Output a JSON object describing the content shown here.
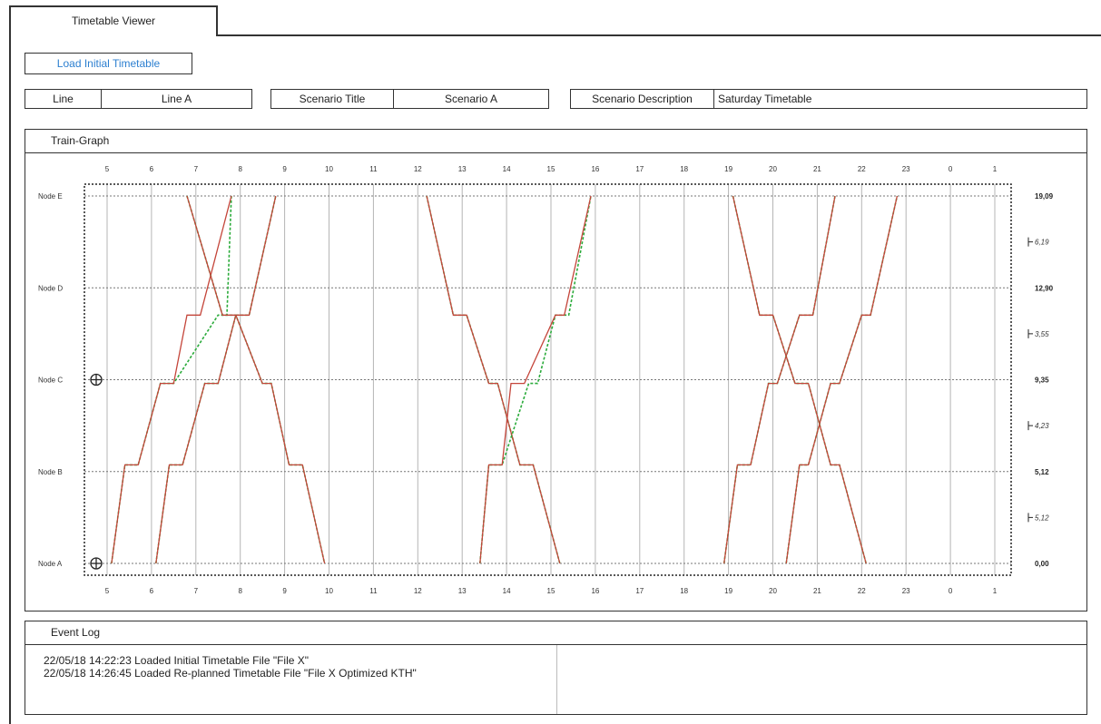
{
  "window": {
    "tab_label": "Timetable Viewer"
  },
  "toolbar": {
    "load_button_label": "Load Initial Timetable"
  },
  "fields": {
    "line": {
      "label": "Line",
      "value": "Line A"
    },
    "scenario_title": {
      "label": "Scenario Title",
      "value": "Scenario A"
    },
    "scenario_description": {
      "label": "Scenario Description",
      "value": "Saturday Timetable"
    }
  },
  "train_graph": {
    "title": "Train-Graph"
  },
  "event_log": {
    "title": "Event Log",
    "entries": [
      "22/05/18 14:22:23 Loaded Initial Timetable File \"File X\"",
      "22/05/18 14:26:45 Loaded Re-planned Timetable File \"File X Optimized KTH\""
    ]
  },
  "chart_data": {
    "type": "line",
    "x_tick_labels": [
      "5",
      "6",
      "7",
      "8",
      "9",
      "10",
      "11",
      "12",
      "13",
      "14",
      "15",
      "16",
      "17",
      "18",
      "19",
      "20",
      "21",
      "22",
      "23",
      "0",
      "1"
    ],
    "xlim": [
      5,
      25
    ],
    "nodes": [
      {
        "name": "Node A",
        "position": "0,00"
      },
      {
        "name": "Node B",
        "position": "5,12"
      },
      {
        "name": "Node C",
        "position": "9,35"
      },
      {
        "name": "Node D",
        "position": "12,90"
      },
      {
        "name": "Node E",
        "position": "19,09"
      }
    ],
    "node_km": [
      0,
      5.12,
      9.35,
      12.9,
      19.09
    ],
    "segment_lengths": [
      "5,12",
      "4,23",
      "3,55",
      "6,19"
    ],
    "expandable_nodes": [
      "Node A",
      "Node C"
    ],
    "grid": true,
    "colors": {
      "initial": "#2bab3b",
      "replanned": "#c4453a"
    },
    "series": [
      {
        "timetable": "initial",
        "points": [
          [
            5.1,
            0
          ],
          [
            5.4,
            5.12
          ],
          [
            5.7,
            5.12
          ],
          [
            6.2,
            9.35
          ],
          [
            6.5,
            9.35
          ],
          [
            7.5,
            12.9
          ],
          [
            7.7,
            12.9
          ],
          [
            7.8,
            19.09
          ]
        ]
      },
      {
        "timetable": "replanned",
        "points": [
          [
            5.1,
            0
          ],
          [
            5.4,
            5.12
          ],
          [
            5.7,
            5.12
          ],
          [
            6.2,
            9.35
          ],
          [
            6.5,
            9.35
          ],
          [
            6.8,
            12.9
          ],
          [
            7.1,
            12.9
          ],
          [
            7.8,
            19.09
          ]
        ]
      },
      {
        "timetable": "initial",
        "points": [
          [
            6.1,
            0
          ],
          [
            6.4,
            5.12
          ],
          [
            6.7,
            5.12
          ],
          [
            7.2,
            9.35
          ],
          [
            7.5,
            9.35
          ],
          [
            7.9,
            12.9
          ],
          [
            8.2,
            12.9
          ],
          [
            8.8,
            19.09
          ]
        ]
      },
      {
        "timetable": "replanned",
        "points": [
          [
            6.1,
            0
          ],
          [
            6.4,
            5.12
          ],
          [
            6.7,
            5.12
          ],
          [
            7.2,
            9.35
          ],
          [
            7.5,
            9.35
          ],
          [
            7.9,
            12.9
          ],
          [
            8.2,
            12.9
          ],
          [
            8.8,
            19.09
          ]
        ]
      },
      {
        "timetable": "initial",
        "points": [
          [
            6.8,
            19.09
          ],
          [
            7.6,
            12.9
          ],
          [
            7.9,
            12.9
          ],
          [
            8.5,
            9.35
          ],
          [
            8.7,
            9.35
          ],
          [
            9.1,
            5.12
          ],
          [
            9.4,
            5.12
          ],
          [
            9.9,
            0
          ]
        ]
      },
      {
        "timetable": "replanned",
        "points": [
          [
            6.8,
            19.09
          ],
          [
            7.6,
            12.9
          ],
          [
            7.9,
            12.9
          ],
          [
            8.5,
            9.35
          ],
          [
            8.7,
            9.35
          ],
          [
            9.1,
            5.12
          ],
          [
            9.4,
            5.12
          ],
          [
            9.9,
            0
          ]
        ]
      },
      {
        "timetable": "initial",
        "points": [
          [
            12.2,
            19.09
          ],
          [
            12.8,
            12.9
          ],
          [
            13.1,
            12.9
          ],
          [
            13.6,
            9.35
          ],
          [
            13.8,
            9.35
          ],
          [
            14.3,
            5.12
          ],
          [
            14.6,
            5.12
          ],
          [
            15.2,
            0
          ]
        ]
      },
      {
        "timetable": "replanned",
        "points": [
          [
            12.2,
            19.09
          ],
          [
            12.8,
            12.9
          ],
          [
            13.1,
            12.9
          ],
          [
            13.6,
            9.35
          ],
          [
            13.8,
            9.35
          ],
          [
            14.3,
            5.12
          ],
          [
            14.6,
            5.12
          ],
          [
            15.2,
            0
          ]
        ]
      },
      {
        "timetable": "initial",
        "points": [
          [
            13.4,
            0
          ],
          [
            13.6,
            5.12
          ],
          [
            13.9,
            5.12
          ],
          [
            14.5,
            9.35
          ],
          [
            14.7,
            9.35
          ],
          [
            15.1,
            12.9
          ],
          [
            15.4,
            12.9
          ],
          [
            15.9,
            19.09
          ]
        ]
      },
      {
        "timetable": "replanned",
        "points": [
          [
            13.4,
            0
          ],
          [
            13.6,
            5.12
          ],
          [
            13.9,
            5.12
          ],
          [
            14.1,
            9.35
          ],
          [
            14.4,
            9.35
          ],
          [
            15.1,
            12.9
          ],
          [
            15.3,
            12.9
          ],
          [
            15.9,
            19.09
          ]
        ]
      },
      {
        "timetable": "initial",
        "points": [
          [
            18.9,
            0
          ],
          [
            19.2,
            5.12
          ],
          [
            19.5,
            5.12
          ],
          [
            19.9,
            9.35
          ],
          [
            20.1,
            9.35
          ],
          [
            20.6,
            12.9
          ],
          [
            20.9,
            12.9
          ],
          [
            21.4,
            19.09
          ]
        ]
      },
      {
        "timetable": "replanned",
        "points": [
          [
            18.9,
            0
          ],
          [
            19.2,
            5.12
          ],
          [
            19.5,
            5.12
          ],
          [
            19.9,
            9.35
          ],
          [
            20.1,
            9.35
          ],
          [
            20.6,
            12.9
          ],
          [
            20.9,
            12.9
          ],
          [
            21.4,
            19.09
          ]
        ]
      },
      {
        "timetable": "initial",
        "points": [
          [
            19.1,
            19.09
          ],
          [
            19.7,
            12.9
          ],
          [
            20.0,
            12.9
          ],
          [
            20.5,
            9.35
          ],
          [
            20.8,
            9.35
          ],
          [
            21.3,
            5.12
          ],
          [
            21.5,
            5.12
          ],
          [
            22.1,
            0
          ]
        ]
      },
      {
        "timetable": "replanned",
        "points": [
          [
            19.1,
            19.09
          ],
          [
            19.7,
            12.9
          ],
          [
            20.0,
            12.9
          ],
          [
            20.5,
            9.35
          ],
          [
            20.8,
            9.35
          ],
          [
            21.3,
            5.12
          ],
          [
            21.5,
            5.12
          ],
          [
            22.1,
            0
          ]
        ]
      },
      {
        "timetable": "initial",
        "points": [
          [
            20.3,
            0
          ],
          [
            20.6,
            5.12
          ],
          [
            20.8,
            5.12
          ],
          [
            21.3,
            9.35
          ],
          [
            21.5,
            9.35
          ],
          [
            22.0,
            12.9
          ],
          [
            22.2,
            12.9
          ],
          [
            22.8,
            19.09
          ]
        ]
      },
      {
        "timetable": "replanned",
        "points": [
          [
            20.3,
            0
          ],
          [
            20.6,
            5.12
          ],
          [
            20.8,
            5.12
          ],
          [
            21.3,
            9.35
          ],
          [
            21.5,
            9.35
          ],
          [
            22.0,
            12.9
          ],
          [
            22.2,
            12.9
          ],
          [
            22.8,
            19.09
          ]
        ]
      }
    ]
  }
}
